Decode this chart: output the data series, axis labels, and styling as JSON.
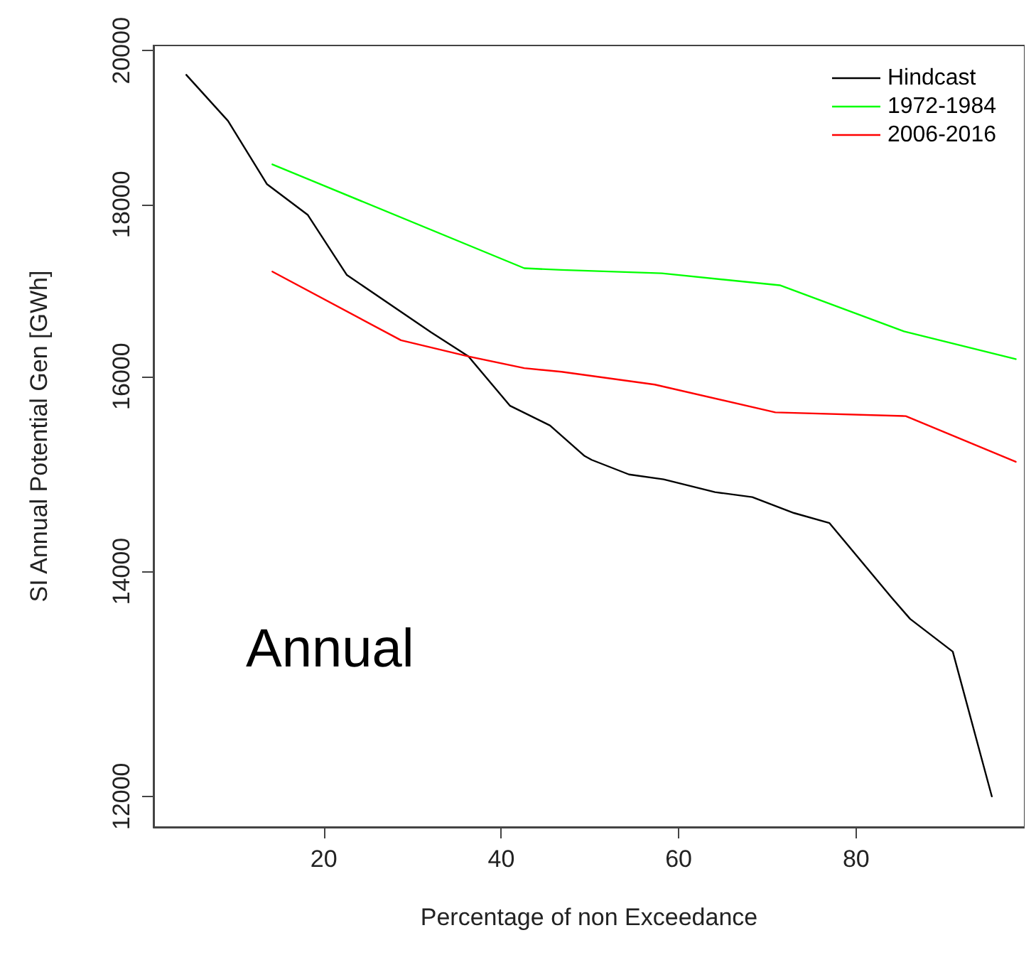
{
  "chart_data": {
    "type": "line",
    "xlabel": "Percentage of non Exceedance",
    "ylabel": "SI Annual Potential Gen [GWh]",
    "annotations": [
      "Annual"
    ],
    "log": "y",
    "xlim": [
      0.8,
      99
    ],
    "ylim": [
      11750,
      20070
    ],
    "xticks": [
      20,
      40,
      60,
      80
    ],
    "yticks": [
      12000,
      14000,
      16000,
      18000,
      20000
    ],
    "grid": false,
    "legend": "top right",
    "marker": "none",
    "line_style": "solid",
    "series": [
      {
        "name": "Hindcast",
        "color": "#000000",
        "x": [
          4.5,
          9.2,
          13.6,
          18.2,
          22.6,
          32.1,
          36.3,
          41.0,
          45.5,
          49.4,
          50.2,
          54.4,
          58.3,
          64.1,
          68.3,
          73.0,
          77.0,
          84.0,
          86.1,
          90.9,
          95.3
        ],
        "values": [
          19670,
          19060,
          18250,
          17870,
          17150,
          16490,
          16220,
          15680,
          15470,
          15150,
          15110,
          14960,
          14910,
          14780,
          14730,
          14570,
          14470,
          13750,
          13550,
          13250,
          12000
        ]
      },
      {
        "name": "1972-1984",
        "color": "#00ff00",
        "x": [
          14.2,
          42.6,
          46.8,
          58.1,
          71.4,
          85.4,
          98
        ],
        "values": [
          18500,
          17230,
          17210,
          17170,
          17030,
          16500,
          16190
        ]
      },
      {
        "name": "2006-2016",
        "color": "#ff0000",
        "x": [
          14.2,
          28.7,
          36.3,
          42.6,
          46.8,
          57.3,
          70.9,
          85.6,
          98
        ],
        "values": [
          17190,
          16400,
          16220,
          16090,
          16050,
          15910,
          15610,
          15570,
          15090
        ]
      }
    ]
  }
}
